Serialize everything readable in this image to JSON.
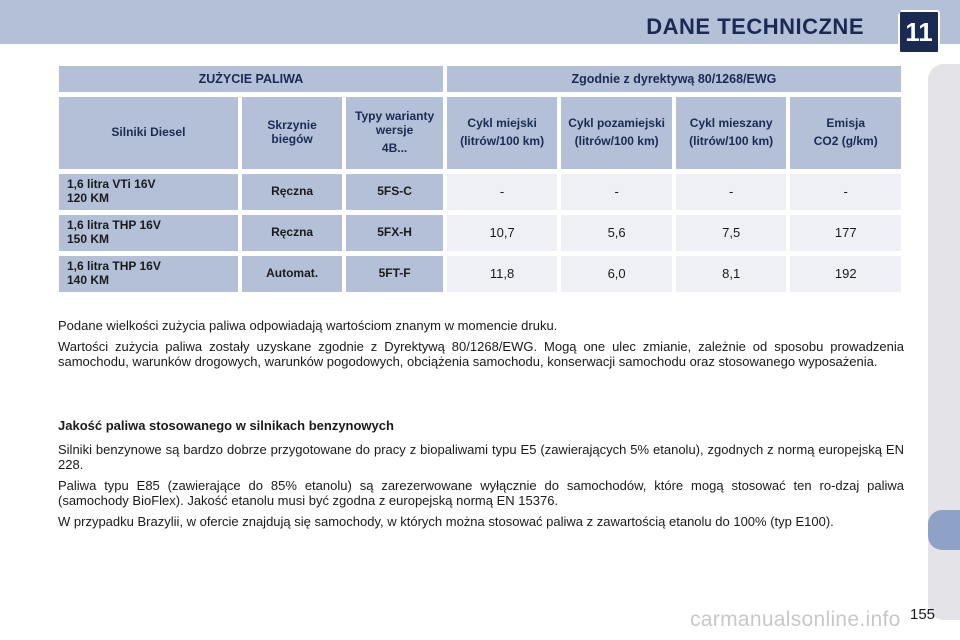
{
  "header": {
    "title": "DANE TECHNICZNE",
    "chapter": "11"
  },
  "table": {
    "group_headers": [
      "ZUŻYCIE PALIWA",
      "Zgodnie z dyrektywą 80/1268/EWG"
    ],
    "columns": [
      {
        "label": "Silniki Diesel"
      },
      {
        "label": "Skrzynie biegów"
      },
      {
        "label": "Typy warianty wersje",
        "sub": "4B..."
      },
      {
        "label": "Cykl miejski",
        "sub": "(litrów/100 km)"
      },
      {
        "label": "Cykl pozamiejski",
        "sub": "(litrów/100 km)"
      },
      {
        "label": "Cykl mieszany",
        "sub": "(litrów/100 km)"
      },
      {
        "label": "Emisja",
        "sub": "CO2 (g/km)"
      }
    ],
    "rows": [
      {
        "engine_line1": "1,6 litra VTi 16V",
        "engine_line2": "120 KM",
        "gearbox": "Ręczna",
        "type": "5FS-C",
        "urban": "-",
        "extra_urban": "-",
        "combined": "-",
        "co2": "-"
      },
      {
        "engine_line1": "1,6 litra THP 16V",
        "engine_line2": "150 KM",
        "gearbox": "Ręczna",
        "type": "5FX-H",
        "urban": "10,7",
        "extra_urban": "5,6",
        "combined": "7,5",
        "co2": "177"
      },
      {
        "engine_line1": "1,6 litra THP 16V",
        "engine_line2": "140 KM",
        "gearbox": "Automat.",
        "type": "5FT-F",
        "urban": "11,8",
        "extra_urban": "6,0",
        "combined": "8,1",
        "co2": "192"
      }
    ]
  },
  "notes": {
    "p1": "Podane wielkości zużycia paliwa odpowiadają wartościom znanym w momencie druku.",
    "p2": "Wartości zużycia paliwa zostały uzyskane zgodnie z Dyrektywą 80/1268/EWG. Mogą one ulec zmianie, zależnie od sposobu prowadzenia samochodu, warunków drogowych, warunków pogodowych, obciążenia samochodu, konserwacji samochodu oraz stosowanego wyposażenia."
  },
  "fuel_quality": {
    "heading": "Jakość paliwa stosowanego w silnikach benzynowych",
    "p1": "Silniki benzynowe są bardzo dobrze przygotowane do pracy z biopaliwami typu E5 (zawierających 5% etanolu), zgodnych z normą europejską EN 228.",
    "p2": "Paliwa typu E85 (zawierające do 85% etanolu) są zarezerwowane wyłącznie do samochodów, które mogą stosować ten ro-dzaj paliwa (samochody BioFlex). Jakość etanolu musi być zgodna z europejską normą EN 15376.",
    "p3": "W przypadku Brazylii, w ofercie znajdują się samochody, w których można stosować paliwa z zawartością etanolu do 100% (typ E100)."
  },
  "footer": {
    "page_number": "155",
    "watermark": "carmanualsonline.info"
  }
}
